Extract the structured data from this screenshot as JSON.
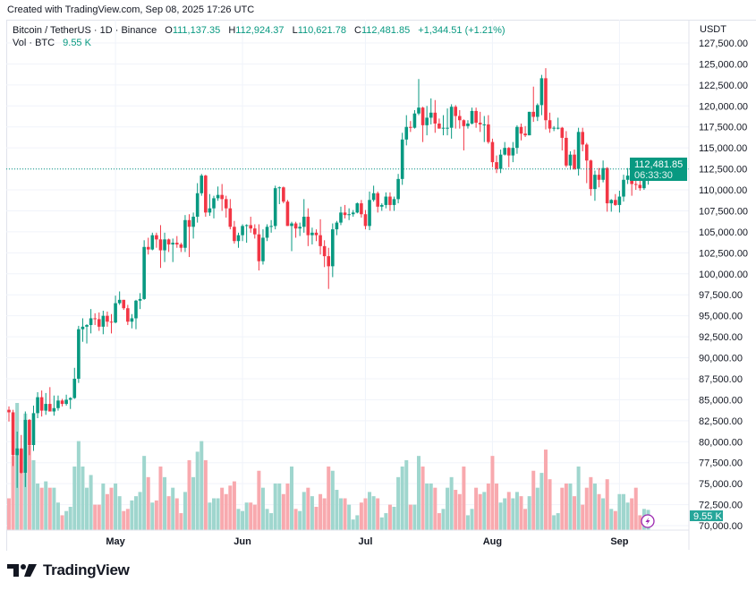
{
  "created_text": "Created with TradingView.com, Sep 08, 2025 17:26 UTC",
  "legend": {
    "symbol": "Bitcoin / TetherUS · 1D · Binance",
    "open_label": "O",
    "open": "111,137.35",
    "high_label": "H",
    "high": "112,924.37",
    "low_label": "L",
    "low": "110,621.78",
    "close_label": "C",
    "close": "112,481.85",
    "change": "+1,344.51 (+1.21%)",
    "volume_label": "Vol · BTC",
    "volume": "9.55 K"
  },
  "currency": "USDT",
  "price_badge": {
    "price": "112,481.85",
    "countdown": "06:33:30"
  },
  "volume_badge": "9.55 K",
  "brand": "TradingView",
  "icons": {
    "lightning": "lightning-icon",
    "logo": "tradingview-logo"
  },
  "colors": {
    "up": "#089981",
    "down": "#f23645",
    "volume_up": "#9fd6ce",
    "volume_down": "#f8a9ae",
    "lightning": "#9c27b0",
    "grid": "#f0f3fa"
  },
  "chart_data": {
    "type": "candlestick",
    "title": "Bitcoin / TetherUS · 1D · Binance",
    "ylim": [
      70000,
      127500
    ],
    "y_ticks": [
      "127,500.00",
      "125,000.00",
      "122,500.00",
      "120,000.00",
      "117,500.00",
      "115,000.00",
      "112,500.00",
      "110,000.00",
      "107,500.00",
      "105,000.00",
      "102,500.00",
      "100,000.00",
      "97,500.00",
      "95,000.00",
      "92,500.00",
      "90,000.00",
      "87,500.00",
      "85,000.00",
      "82,500.00",
      "80,000.00",
      "77,500.00",
      "75,000.00",
      "72,500.00",
      "70,000.00"
    ],
    "x_ticks": [
      {
        "label": "May",
        "date": "2025-05-01"
      },
      {
        "label": "Jun",
        "date": "2025-06-01"
      },
      {
        "label": "Jul",
        "date": "2025-07-01"
      },
      {
        "label": "Aug",
        "date": "2025-08-01"
      },
      {
        "label": "Sep",
        "date": "2025-09-01"
      }
    ],
    "grid": true,
    "last_price": 112481.85,
    "volume_unit": "K BTC",
    "columns": [
      "date",
      "open",
      "high",
      "low",
      "close",
      "volume"
    ],
    "candles": [
      [
        "2025-04-05",
        83800,
        84200,
        82400,
        83500,
        15
      ],
      [
        "2025-04-06",
        83500,
        83800,
        77100,
        78400,
        35
      ],
      [
        "2025-04-07",
        78400,
        81200,
        74500,
        79200,
        60
      ],
      [
        "2025-04-08",
        79200,
        80800,
        76200,
        76300,
        38
      ],
      [
        "2025-04-09",
        76300,
        83600,
        74600,
        82600,
        55
      ],
      [
        "2025-04-10",
        82600,
        82700,
        78400,
        79600,
        40
      ],
      [
        "2025-04-11",
        79600,
        84300,
        78900,
        83400,
        33
      ],
      [
        "2025-04-12",
        83400,
        85900,
        82800,
        85300,
        22
      ],
      [
        "2025-04-13",
        85300,
        86100,
        83000,
        83700,
        20
      ],
      [
        "2025-04-14",
        83700,
        85800,
        83200,
        84500,
        23
      ],
      [
        "2025-04-15",
        84500,
        86500,
        83600,
        83600,
        20
      ],
      [
        "2025-04-16",
        83600,
        85500,
        83100,
        84000,
        20
      ],
      [
        "2025-04-17",
        84000,
        85500,
        83700,
        84900,
        13
      ],
      [
        "2025-04-18",
        84900,
        85100,
        84200,
        84500,
        7
      ],
      [
        "2025-04-19",
        84500,
        85600,
        84300,
        85000,
        9
      ],
      [
        "2025-04-20",
        85000,
        85300,
        83900,
        85200,
        11
      ],
      [
        "2025-04-21",
        85200,
        88800,
        85100,
        87500,
        30
      ],
      [
        "2025-04-22",
        87500,
        93800,
        87000,
        93400,
        42
      ],
      [
        "2025-04-23",
        93400,
        94700,
        91900,
        93700,
        30
      ],
      [
        "2025-04-24",
        93700,
        94000,
        91700,
        93900,
        20
      ],
      [
        "2025-04-25",
        93900,
        95800,
        92900,
        94700,
        26
      ],
      [
        "2025-04-26",
        94700,
        95300,
        93900,
        94600,
        12
      ],
      [
        "2025-04-27",
        94600,
        95400,
        93200,
        93700,
        12
      ],
      [
        "2025-04-28",
        93700,
        95600,
        92800,
        95000,
        22
      ],
      [
        "2025-04-29",
        95000,
        95500,
        93700,
        94300,
        17
      ],
      [
        "2025-04-30",
        94300,
        95200,
        92900,
        94200,
        20
      ],
      [
        "2025-05-01",
        94200,
        97400,
        94100,
        96500,
        22
      ],
      [
        "2025-05-02",
        96500,
        97900,
        96300,
        96900,
        16
      ],
      [
        "2025-05-03",
        96900,
        96900,
        95700,
        95900,
        9
      ],
      [
        "2025-05-04",
        95900,
        96300,
        93900,
        94300,
        10
      ],
      [
        "2025-05-05",
        94300,
        95200,
        93500,
        94700,
        14
      ],
      [
        "2025-05-06",
        94700,
        96900,
        93400,
        96800,
        16
      ],
      [
        "2025-05-07",
        96800,
        97700,
        95800,
        97000,
        18
      ],
      [
        "2025-05-08",
        97000,
        104000,
        96900,
        103200,
        35
      ],
      [
        "2025-05-09",
        103200,
        104300,
        102300,
        102900,
        25
      ],
      [
        "2025-05-10",
        102900,
        104900,
        102800,
        104600,
        13
      ],
      [
        "2025-05-11",
        104600,
        104900,
        103100,
        104100,
        14
      ],
      [
        "2025-05-12",
        104100,
        105800,
        100700,
        102800,
        30
      ],
      [
        "2025-05-13",
        102800,
        104900,
        101400,
        104100,
        25
      ],
      [
        "2025-05-14",
        104100,
        104200,
        102600,
        103500,
        16
      ],
      [
        "2025-05-15",
        103500,
        104200,
        101400,
        103700,
        20
      ],
      [
        "2025-05-16",
        103700,
        104500,
        103100,
        103500,
        15
      ],
      [
        "2025-05-17",
        103500,
        103700,
        102600,
        103100,
        8
      ],
      [
        "2025-05-18",
        103100,
        107000,
        102600,
        106400,
        18
      ],
      [
        "2025-05-19",
        106400,
        107100,
        102000,
        105600,
        33
      ],
      [
        "2025-05-20",
        105600,
        107300,
        104200,
        106800,
        25
      ],
      [
        "2025-05-21",
        106800,
        110800,
        106100,
        109600,
        37
      ],
      [
        "2025-05-22",
        109600,
        111900,
        109300,
        111700,
        42
      ],
      [
        "2025-05-23",
        111700,
        111800,
        106800,
        107300,
        33
      ],
      [
        "2025-05-24",
        107300,
        109500,
        106900,
        107800,
        13
      ],
      [
        "2025-05-25",
        107800,
        109300,
        106600,
        109000,
        15
      ],
      [
        "2025-05-26",
        109000,
        110400,
        108700,
        109400,
        15
      ],
      [
        "2025-05-27",
        109400,
        110700,
        107500,
        108900,
        20
      ],
      [
        "2025-05-28",
        108900,
        109300,
        106700,
        107800,
        17
      ],
      [
        "2025-05-29",
        107800,
        108900,
        105300,
        105600,
        21
      ],
      [
        "2025-05-30",
        105600,
        106300,
        103600,
        103900,
        23
      ],
      [
        "2025-05-31",
        103900,
        104900,
        103100,
        104600,
        10
      ],
      [
        "2025-06-01",
        104600,
        105900,
        103900,
        105700,
        9
      ],
      [
        "2025-06-02",
        105700,
        105900,
        103700,
        105800,
        13
      ],
      [
        "2025-06-03",
        105800,
        106800,
        104900,
        105400,
        13
      ],
      [
        "2025-06-04",
        105400,
        105900,
        104200,
        104700,
        12
      ],
      [
        "2025-06-05",
        104700,
        105900,
        100400,
        101500,
        28
      ],
      [
        "2025-06-06",
        101500,
        105300,
        101100,
        104300,
        20
      ],
      [
        "2025-06-07",
        104300,
        105900,
        103900,
        105600,
        10
      ],
      [
        "2025-06-08",
        105600,
        106400,
        104900,
        105700,
        8
      ],
      [
        "2025-06-09",
        105700,
        110500,
        105300,
        110200,
        22
      ],
      [
        "2025-06-10",
        110200,
        110400,
        108300,
        110300,
        22
      ],
      [
        "2025-06-11",
        110300,
        110400,
        108400,
        108600,
        17
      ],
      [
        "2025-06-12",
        108600,
        108800,
        105700,
        105700,
        22
      ],
      [
        "2025-06-13",
        105700,
        106200,
        102700,
        106000,
        30
      ],
      [
        "2025-06-14",
        106000,
        106200,
        104300,
        105400,
        10
      ],
      [
        "2025-06-15",
        105400,
        106100,
        104500,
        105600,
        9
      ],
      [
        "2025-06-16",
        105600,
        108900,
        104900,
        106800,
        18
      ],
      [
        "2025-06-17",
        106800,
        107800,
        103300,
        104600,
        20
      ],
      [
        "2025-06-18",
        104600,
        105500,
        103500,
        104900,
        16
      ],
      [
        "2025-06-19",
        104900,
        105300,
        103900,
        104600,
        11
      ],
      [
        "2025-06-20",
        104600,
        106500,
        102300,
        103300,
        17
      ],
      [
        "2025-06-21",
        103300,
        104000,
        100800,
        102100,
        15
      ],
      [
        "2025-06-22",
        102100,
        103100,
        98200,
        100900,
        30
      ],
      [
        "2025-06-23",
        100900,
        106000,
        99600,
        105300,
        28
      ],
      [
        "2025-06-24",
        105300,
        106300,
        104600,
        106100,
        19
      ],
      [
        "2025-06-25",
        106100,
        108000,
        105800,
        107300,
        15
      ],
      [
        "2025-06-26",
        107300,
        108200,
        106600,
        107000,
        15
      ],
      [
        "2025-06-27",
        107000,
        107800,
        106400,
        107100,
        12
      ],
      [
        "2025-06-28",
        107100,
        107600,
        106800,
        107300,
        5
      ],
      [
        "2025-06-29",
        107300,
        108500,
        107200,
        108400,
        7
      ],
      [
        "2025-06-30",
        108400,
        108800,
        106700,
        107100,
        13
      ],
      [
        "2025-07-01",
        107100,
        107600,
        105300,
        105700,
        15
      ],
      [
        "2025-07-02",
        105700,
        109800,
        105200,
        108800,
        18
      ],
      [
        "2025-07-03",
        108800,
        110500,
        108600,
        109600,
        16
      ],
      [
        "2025-07-04",
        109600,
        109800,
        107300,
        108000,
        15
      ],
      [
        "2025-07-05",
        108000,
        108400,
        107500,
        108200,
        6
      ],
      [
        "2025-07-06",
        108200,
        109700,
        107800,
        109200,
        8
      ],
      [
        "2025-07-07",
        109200,
        109700,
        107500,
        108200,
        12
      ],
      [
        "2025-07-08",
        108200,
        109200,
        107500,
        108900,
        11
      ],
      [
        "2025-07-09",
        108900,
        111900,
        108400,
        111300,
        25
      ],
      [
        "2025-07-10",
        111300,
        116800,
        110600,
        116000,
        30
      ],
      [
        "2025-07-11",
        116000,
        118900,
        115300,
        117500,
        33
      ],
      [
        "2025-07-12",
        117500,
        118200,
        116900,
        117400,
        12
      ],
      [
        "2025-07-13",
        117400,
        119500,
        117300,
        119100,
        12
      ],
      [
        "2025-07-14",
        119100,
        123200,
        118900,
        119800,
        35
      ],
      [
        "2025-07-15",
        119800,
        119900,
        115700,
        117700,
        30
      ],
      [
        "2025-07-16",
        117700,
        120000,
        116500,
        118600,
        22
      ],
      [
        "2025-07-17",
        118600,
        120900,
        117800,
        119200,
        22
      ],
      [
        "2025-07-18",
        119200,
        120700,
        116800,
        117900,
        20
      ],
      [
        "2025-07-19",
        117900,
        118500,
        117300,
        117300,
        8
      ],
      [
        "2025-07-20",
        117300,
        118900,
        116500,
        117400,
        10
      ],
      [
        "2025-07-21",
        117400,
        119700,
        116500,
        117400,
        20
      ],
      [
        "2025-07-22",
        117400,
        120200,
        116100,
        119900,
        25
      ],
      [
        "2025-07-23",
        119900,
        120100,
        117300,
        118800,
        19
      ],
      [
        "2025-07-24",
        118800,
        119500,
        117300,
        118300,
        17
      ],
      [
        "2025-07-25",
        118300,
        118400,
        114700,
        117600,
        30
      ],
      [
        "2025-07-26",
        117600,
        118300,
        117300,
        117900,
        7
      ],
      [
        "2025-07-27",
        117900,
        119800,
        117800,
        119400,
        10
      ],
      [
        "2025-07-28",
        119400,
        119800,
        117400,
        118000,
        20
      ],
      [
        "2025-07-29",
        118000,
        119300,
        116900,
        117800,
        17
      ],
      [
        "2025-07-30",
        117800,
        118800,
        115700,
        117800,
        18
      ],
      [
        "2025-07-31",
        117800,
        118900,
        115500,
        115700,
        22
      ],
      [
        "2025-08-01",
        115700,
        116100,
        112700,
        113300,
        35
      ],
      [
        "2025-08-02",
        113300,
        114100,
        112000,
        112500,
        22
      ],
      [
        "2025-08-03",
        112500,
        114800,
        112000,
        114200,
        13
      ],
      [
        "2025-08-04",
        114200,
        115700,
        114100,
        115000,
        15
      ],
      [
        "2025-08-05",
        115000,
        115100,
        112700,
        114100,
        18
      ],
      [
        "2025-08-06",
        114100,
        115700,
        113300,
        115000,
        15
      ],
      [
        "2025-08-07",
        115000,
        117700,
        114300,
        117500,
        18
      ],
      [
        "2025-08-08",
        117500,
        117900,
        115900,
        116700,
        16
      ],
      [
        "2025-08-09",
        116700,
        117600,
        116300,
        116500,
        10
      ],
      [
        "2025-08-10",
        116500,
        119300,
        116500,
        119300,
        16
      ],
      [
        "2025-08-11",
        119300,
        122300,
        118100,
        118700,
        28
      ],
      [
        "2025-08-12",
        118700,
        120300,
        118200,
        120100,
        20
      ],
      [
        "2025-08-13",
        120100,
        123700,
        118900,
        123300,
        27
      ],
      [
        "2025-08-14",
        123300,
        124500,
        117200,
        118300,
        38
      ],
      [
        "2025-08-15",
        118300,
        119200,
        116800,
        117300,
        24
      ],
      [
        "2025-08-16",
        117300,
        117600,
        117000,
        117400,
        7
      ],
      [
        "2025-08-17",
        117400,
        118600,
        117200,
        117400,
        8
      ],
      [
        "2025-08-18",
        117400,
        117500,
        114700,
        116200,
        20
      ],
      [
        "2025-08-19",
        116200,
        117000,
        112700,
        112900,
        22
      ],
      [
        "2025-08-20",
        112900,
        114600,
        112400,
        114200,
        22
      ],
      [
        "2025-08-21",
        114200,
        114800,
        112400,
        112500,
        16
      ],
      [
        "2025-08-22",
        112500,
        117400,
        111700,
        116900,
        30
      ],
      [
        "2025-08-23",
        116900,
        117400,
        114600,
        115400,
        12
      ],
      [
        "2025-08-24",
        115400,
        115600,
        110800,
        113500,
        20
      ],
      [
        "2025-08-25",
        113500,
        113600,
        109300,
        110100,
        25
      ],
      [
        "2025-08-26",
        110100,
        112300,
        108700,
        111800,
        22
      ],
      [
        "2025-08-27",
        111800,
        112600,
        110300,
        111200,
        17
      ],
      [
        "2025-08-28",
        111200,
        113500,
        110900,
        112600,
        15
      ],
      [
        "2025-08-29",
        112600,
        112700,
        107400,
        108400,
        24
      ],
      [
        "2025-08-30",
        108400,
        108900,
        107400,
        108800,
        10
      ],
      [
        "2025-08-31",
        108800,
        109500,
        108100,
        108200,
        9
      ],
      [
        "2025-09-01",
        108200,
        109900,
        107300,
        109200,
        17
      ],
      [
        "2025-09-02",
        109200,
        111800,
        108600,
        111200,
        17
      ],
      [
        "2025-09-03",
        111200,
        112600,
        110700,
        111700,
        13
      ],
      [
        "2025-09-04",
        111700,
        112200,
        109300,
        110700,
        15
      ],
      [
        "2025-09-05",
        110700,
        113400,
        110000,
        110600,
        20
      ],
      [
        "2025-09-06",
        110600,
        111300,
        109900,
        110200,
        7
      ],
      [
        "2025-09-07",
        110200,
        111300,
        110000,
        111137.35,
        10
      ],
      [
        "2025-09-08",
        111137.35,
        112924.37,
        110621.78,
        112481.85,
        9.55
      ]
    ]
  }
}
